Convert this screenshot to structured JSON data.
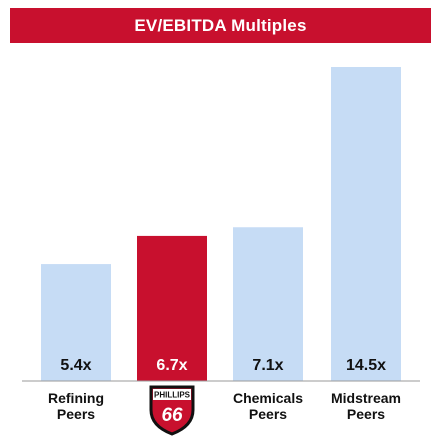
{
  "chart_data": {
    "type": "bar",
    "title": "EV/EBITDA Multiples",
    "categories": [
      {
        "label_lines": [
          "Refining",
          "Peers"
        ],
        "logo": null
      },
      {
        "label_lines": [],
        "logo": {
          "name": "phillips-66-logo",
          "top_text": "PHILLIPS",
          "bottom_text": "66"
        }
      },
      {
        "label_lines": [
          "Chemicals",
          "Peers"
        ],
        "logo": null
      },
      {
        "label_lines": [
          "Midstream",
          "Peers"
        ],
        "logo": null
      }
    ],
    "values": [
      5.4,
      6.7,
      7.1,
      14.5
    ],
    "value_labels": [
      "5.4x",
      "6.7x",
      "7.1x",
      "14.5x"
    ],
    "ylim": [
      0,
      14.5
    ],
    "bar_colors": [
      "#c6dcf5",
      "#c8102e",
      "#c6dcf5",
      "#c6dcf5"
    ],
    "value_label_colors": [
      "#111111",
      "#ffffff",
      "#111111",
      "#111111"
    ],
    "logo_colors": {
      "shield": "#c8102e",
      "ring": "#111111",
      "text": "#ffffff"
    },
    "grid": false,
    "legend": "none"
  }
}
